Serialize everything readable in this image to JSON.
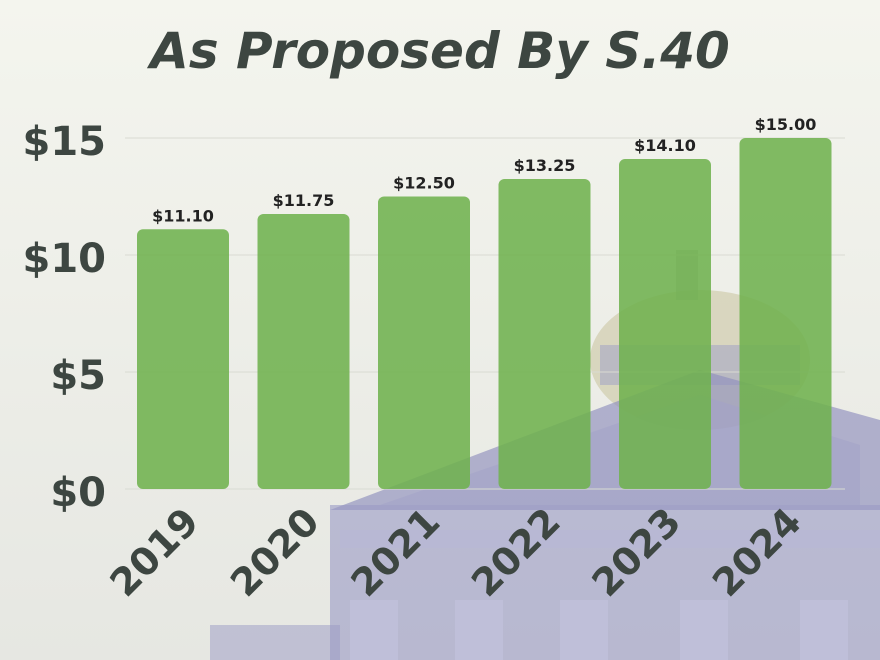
{
  "chart_data": {
    "type": "bar",
    "title": "As Proposed By S.40",
    "xlabel": "",
    "ylabel": "",
    "categories": [
      "2019",
      "2020",
      "2021",
      "2022",
      "2023",
      "2024"
    ],
    "values": [
      11.1,
      11.75,
      12.5,
      13.25,
      14.1,
      15.0
    ],
    "data_labels": [
      "$11.10",
      "$11.75",
      "$12.50",
      "$13.25",
      "$14.10",
      "$15.00"
    ],
    "y_ticks": [
      0,
      5,
      10,
      15
    ],
    "y_tick_labels": [
      "$0",
      "$5",
      "$10",
      "$15"
    ],
    "ylim": [
      0,
      15
    ],
    "grid": true,
    "legend": "none"
  },
  "colors": {
    "bar": "#6fb24f",
    "text": "#3d4641",
    "grid": "#d9dbd2"
  }
}
